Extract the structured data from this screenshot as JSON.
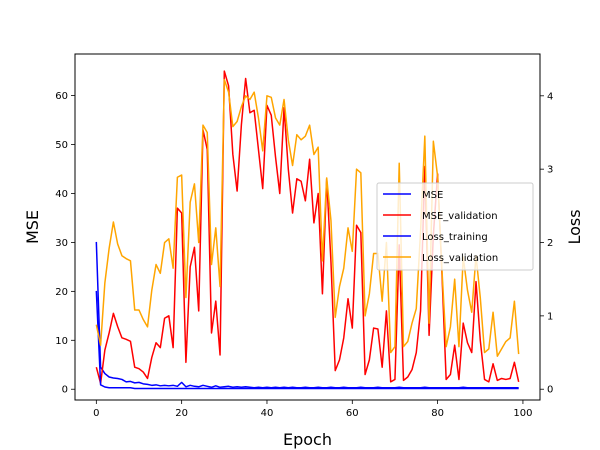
{
  "chart_data": {
    "type": "line",
    "xlabel": "Epoch",
    "ylabel_left": "MSE",
    "ylabel_right": "Loss",
    "xlim": [
      -5,
      104
    ],
    "ylim_left": [
      -2.2,
      68.5
    ],
    "ylim_right": [
      -0.147,
      4.57
    ],
    "x_ticks": [
      0,
      20,
      40,
      60,
      80,
      100
    ],
    "y_ticks_left": [
      0,
      10,
      20,
      30,
      40,
      50,
      60
    ],
    "y_ticks_right": [
      0,
      1,
      2,
      3,
      4
    ],
    "grid": false,
    "legend_placement": "center-right",
    "series": [
      {
        "name": "MSE",
        "axis": "left",
        "color": "#0000ff",
        "x": [
          0,
          1,
          2,
          3,
          4,
          5,
          6,
          7,
          8,
          9,
          10,
          11,
          12,
          13,
          14,
          15,
          16,
          17,
          18,
          19,
          20,
          21,
          22,
          23,
          24,
          25,
          26,
          27,
          28,
          29,
          30,
          31,
          32,
          33,
          34,
          35,
          36,
          37,
          38,
          39,
          40,
          41,
          42,
          43,
          44,
          45,
          46,
          47,
          48,
          49,
          50,
          51,
          52,
          53,
          54,
          55,
          56,
          57,
          58,
          59,
          60,
          61,
          62,
          63,
          64,
          65,
          66,
          67,
          68,
          69,
          70,
          71,
          72,
          73,
          74,
          75,
          76,
          77,
          78,
          79,
          80,
          81,
          82,
          83,
          84,
          85,
          86,
          87,
          88,
          89,
          90,
          91,
          92,
          93,
          94,
          95,
          96,
          97,
          98,
          99
        ],
        "values": [
          30.1,
          4.5,
          3.2,
          2.5,
          2.3,
          2.2,
          2.0,
          1.5,
          1.6,
          1.3,
          1.4,
          1.1,
          1.0,
          0.8,
          0.9,
          0.7,
          0.8,
          0.7,
          0.8,
          0.6,
          1.4,
          0.5,
          0.8,
          0.6,
          0.5,
          0.8,
          0.6,
          0.4,
          0.7,
          0.4,
          0.5,
          0.6,
          0.4,
          0.5,
          0.4,
          0.5,
          0.4,
          0.3,
          0.4,
          0.3,
          0.4,
          0.3,
          0.4,
          0.3,
          0.4,
          0.3,
          0.4,
          0.3,
          0.3,
          0.4,
          0.3,
          0.3,
          0.4,
          0.3,
          0.3,
          0.4,
          0.3,
          0.3,
          0.4,
          0.3,
          0.3,
          0.3,
          0.4,
          0.3,
          0.3,
          0.3,
          0.4,
          0.3,
          0.3,
          0.3,
          0.3,
          0.4,
          0.3,
          0.3,
          0.3,
          0.3,
          0.3,
          0.4,
          0.3,
          0.3,
          0.3,
          0.3,
          0.3,
          0.3,
          0.3,
          0.3,
          0.4,
          0.3,
          0.3,
          0.3,
          0.3,
          0.3,
          0.3,
          0.3,
          0.3,
          0.3,
          0.3,
          0.3,
          0.3,
          0.3
        ]
      },
      {
        "name": "MSE_validation",
        "axis": "left",
        "color": "#ff0000",
        "x": [
          0,
          1,
          2,
          3,
          4,
          5,
          6,
          7,
          8,
          9,
          10,
          11,
          12,
          13,
          14,
          15,
          16,
          17,
          18,
          19,
          20,
          21,
          22,
          23,
          24,
          25,
          26,
          27,
          28,
          29,
          30,
          31,
          32,
          33,
          34,
          35,
          36,
          37,
          38,
          39,
          40,
          41,
          42,
          43,
          44,
          45,
          46,
          47,
          48,
          49,
          50,
          51,
          52,
          53,
          54,
          55,
          56,
          57,
          58,
          59,
          60,
          61,
          62,
          63,
          64,
          65,
          66,
          67,
          68,
          69,
          70,
          71,
          72,
          73,
          74,
          75,
          76,
          77,
          78,
          79,
          80,
          81,
          82,
          83,
          84,
          85,
          86,
          87,
          88,
          89,
          90,
          91,
          92,
          93,
          94,
          95,
          96,
          97,
          98,
          99
        ],
        "values": [
          4.5,
          1.2,
          8.0,
          11.5,
          15.5,
          12.8,
          10.5,
          10.2,
          9.8,
          4.5,
          4.2,
          3.5,
          2.2,
          6.5,
          9.5,
          8.5,
          14.5,
          15.0,
          8.5,
          37.0,
          36.0,
          5.5,
          25.0,
          29.0,
          16.0,
          53.0,
          49.0,
          11.5,
          18.0,
          7.0,
          65.0,
          62.0,
          48.0,
          40.5,
          54.0,
          63.5,
          56.5,
          57.0,
          49.0,
          41.0,
          58.0,
          56.0,
          47.5,
          40.0,
          57.5,
          45.0,
          36.0,
          43.0,
          42.5,
          38.5,
          47.0,
          34.0,
          40.0,
          19.5,
          43.0,
          26.0,
          3.8,
          6.0,
          10.5,
          18.5,
          12.5,
          33.5,
          32.0,
          3.0,
          6.0,
          12.5,
          12.3,
          4.5,
          16.0,
          1.5,
          2.0,
          29.5,
          1.8,
          2.5,
          4.0,
          7.5,
          16.0,
          45.5,
          11.0,
          31.5,
          44.0,
          24.0,
          2.0,
          3.0,
          9.0,
          2.0,
          13.5,
          9.5,
          7.5,
          22.0,
          10.0,
          2.0,
          1.5,
          5.2,
          1.8,
          2.2,
          2.0,
          2.2,
          5.5,
          1.5
        ]
      },
      {
        "name": "Loss_training",
        "axis": "right",
        "color": "#0000ff",
        "x": [
          0,
          1,
          2,
          3,
          4,
          5,
          6,
          7,
          8,
          9,
          10,
          11,
          12,
          13,
          14,
          15,
          16,
          17,
          18,
          19,
          20,
          21,
          22,
          23,
          24,
          25,
          26,
          27,
          28,
          29,
          30,
          31,
          32,
          33,
          34,
          35,
          36,
          37,
          38,
          39,
          40,
          41,
          42,
          43,
          44,
          45,
          46,
          47,
          48,
          49,
          50,
          51,
          52,
          53,
          54,
          55,
          56,
          57,
          58,
          59,
          60,
          61,
          62,
          63,
          64,
          65,
          66,
          67,
          68,
          69,
          70,
          71,
          72,
          73,
          74,
          75,
          76,
          77,
          78,
          79,
          80,
          81,
          82,
          83,
          84,
          85,
          86,
          87,
          88,
          89,
          90,
          91,
          92,
          93,
          94,
          95,
          96,
          97,
          98,
          99
        ],
        "values": [
          1.34,
          0.06,
          0.03,
          0.02,
          0.02,
          0.02,
          0.02,
          0.02,
          0.02,
          0.01,
          0.01,
          0.01,
          0.01,
          0.01,
          0.01,
          0.01,
          0.01,
          0.01,
          0.01,
          0.01,
          0.01,
          0.01,
          0.01,
          0.01,
          0.01,
          0.01,
          0.01,
          0.01,
          0.01,
          0.01,
          0.01,
          0.01,
          0.01,
          0.01,
          0.01,
          0.01,
          0.01,
          0.01,
          0.01,
          0.01,
          0.01,
          0.01,
          0.01,
          0.01,
          0.01,
          0.01,
          0.01,
          0.01,
          0.01,
          0.01,
          0.01,
          0.01,
          0.01,
          0.01,
          0.01,
          0.01,
          0.01,
          0.01,
          0.01,
          0.01,
          0.01,
          0.01,
          0.01,
          0.01,
          0.01,
          0.01,
          0.01,
          0.01,
          0.01,
          0.01,
          0.01,
          0.01,
          0.01,
          0.01,
          0.01,
          0.01,
          0.01,
          0.01,
          0.01,
          0.01,
          0.01,
          0.01,
          0.01,
          0.01,
          0.01,
          0.01,
          0.01,
          0.01,
          0.01,
          0.01,
          0.01,
          0.01,
          0.01,
          0.01,
          0.01,
          0.01,
          0.01,
          0.01,
          0.01,
          0.01
        ]
      },
      {
        "name": "Loss_validation",
        "axis": "right",
        "color": "#ffa500",
        "x": [
          0,
          1,
          2,
          3,
          4,
          5,
          6,
          7,
          8,
          9,
          10,
          11,
          12,
          13,
          14,
          15,
          16,
          17,
          18,
          19,
          20,
          21,
          22,
          23,
          24,
          25,
          26,
          27,
          28,
          29,
          30,
          31,
          32,
          33,
          34,
          35,
          36,
          37,
          38,
          39,
          40,
          41,
          42,
          43,
          44,
          45,
          46,
          47,
          48,
          49,
          50,
          51,
          52,
          53,
          54,
          55,
          56,
          57,
          58,
          59,
          60,
          61,
          62,
          63,
          64,
          65,
          66,
          67,
          68,
          69,
          70,
          71,
          72,
          73,
          74,
          75,
          76,
          77,
          78,
          79,
          80,
          81,
          82,
          83,
          84,
          85,
          86,
          87,
          88,
          89,
          90,
          91,
          92,
          93,
          94,
          95,
          96,
          97,
          98,
          99
        ],
        "values": [
          0.88,
          0.6,
          1.45,
          1.92,
          2.28,
          1.98,
          1.82,
          1.78,
          1.75,
          1.08,
          1.08,
          0.95,
          0.85,
          1.35,
          1.7,
          1.58,
          2.0,
          2.05,
          1.65,
          2.89,
          2.92,
          1.25,
          2.55,
          2.8,
          2.0,
          3.6,
          3.5,
          1.7,
          2.2,
          1.4,
          4.22,
          4.05,
          3.58,
          3.65,
          3.85,
          4.0,
          3.95,
          4.05,
          3.7,
          3.25,
          4.0,
          3.98,
          3.7,
          3.6,
          3.95,
          3.4,
          3.05,
          3.47,
          3.4,
          3.45,
          3.6,
          3.2,
          3.3,
          1.75,
          2.88,
          2.3,
          0.98,
          1.4,
          1.65,
          2.2,
          1.88,
          3.0,
          2.95,
          1.0,
          1.3,
          1.85,
          1.85,
          1.2,
          2.0,
          0.5,
          0.58,
          3.08,
          0.58,
          0.65,
          0.9,
          1.1,
          2.15,
          3.45,
          0.9,
          3.38,
          2.9,
          1.65,
          0.58,
          0.85,
          1.5,
          0.58,
          1.8,
          1.35,
          1.05,
          1.82,
          1.25,
          0.5,
          0.55,
          1.05,
          0.45,
          0.55,
          0.65,
          0.7,
          1.2,
          0.48
        ]
      }
    ]
  }
}
